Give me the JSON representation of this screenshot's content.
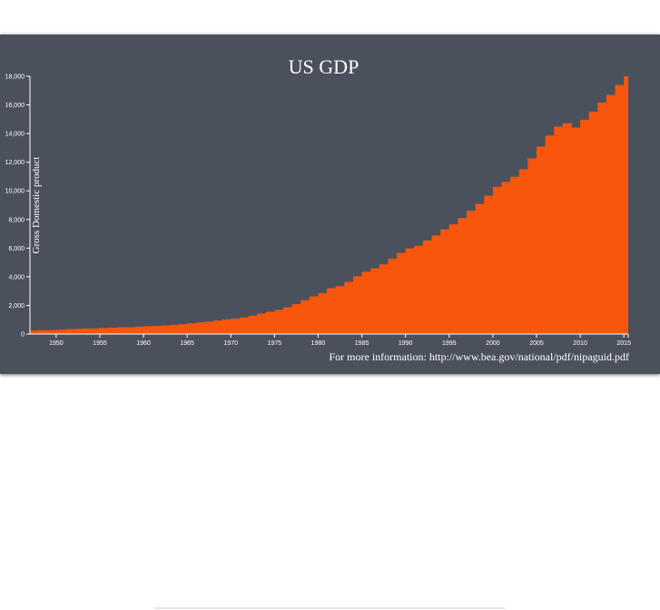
{
  "chart_data": {
    "type": "bar",
    "title": "US GDP",
    "ylabel": "Gross Domestic product",
    "xlabel": "",
    "note": "For more information: http://www.bea.gov/national/pdf/nipaguid.pdf",
    "xlim": [
      1947,
      2015.5
    ],
    "ylim": [
      0,
      18000
    ],
    "x_ticks": [
      1950,
      1955,
      1960,
      1965,
      1970,
      1975,
      1980,
      1985,
      1990,
      1995,
      2000,
      2005,
      2010,
      2015
    ],
    "y_ticks": [
      0,
      2000,
      4000,
      6000,
      8000,
      10000,
      12000,
      14000,
      16000,
      18000
    ],
    "y_tick_labels": [
      "0",
      "2,000",
      "4,000",
      "6,000",
      "8,000",
      "10,000",
      "12,000",
      "14,000",
      "16,000",
      "18,000"
    ],
    "bar_color": "#f7560c",
    "background_color": "#4a515c",
    "grid": false,
    "x": [
      1947,
      1948,
      1949,
      1950,
      1951,
      1952,
      1953,
      1954,
      1955,
      1956,
      1957,
      1958,
      1959,
      1960,
      1961,
      1962,
      1963,
      1964,
      1965,
      1966,
      1967,
      1968,
      1969,
      1970,
      1971,
      1972,
      1973,
      1974,
      1975,
      1976,
      1977,
      1978,
      1979,
      1980,
      1981,
      1982,
      1983,
      1984,
      1985,
      1986,
      1987,
      1988,
      1989,
      1990,
      1991,
      1992,
      1993,
      1994,
      1995,
      1996,
      1997,
      1998,
      1999,
      2000,
      2001,
      2002,
      2003,
      2004,
      2005,
      2006,
      2007,
      2008,
      2009,
      2010,
      2011,
      2012,
      2013,
      2014,
      2015
    ],
    "values": [
      243,
      270,
      270,
      300,
      345,
      360,
      385,
      390,
      425,
      450,
      475,
      480,
      520,
      545,
      565,
      605,
      640,
      685,
      745,
      815,
      860,
      940,
      1020,
      1075,
      1165,
      1280,
      1430,
      1550,
      1690,
      1870,
      2090,
      2360,
      2630,
      2860,
      3200,
      3345,
      3640,
      4040,
      4350,
      4590,
      4870,
      5250,
      5660,
      5980,
      6170,
      6540,
      6880,
      7310,
      7660,
      8100,
      8610,
      9090,
      9660,
      10280,
      10620,
      10980,
      11510,
      12270,
      13090,
      13860,
      14480,
      14720,
      14420,
      14960,
      15520,
      16160,
      16690,
      17390,
      18000
    ]
  }
}
